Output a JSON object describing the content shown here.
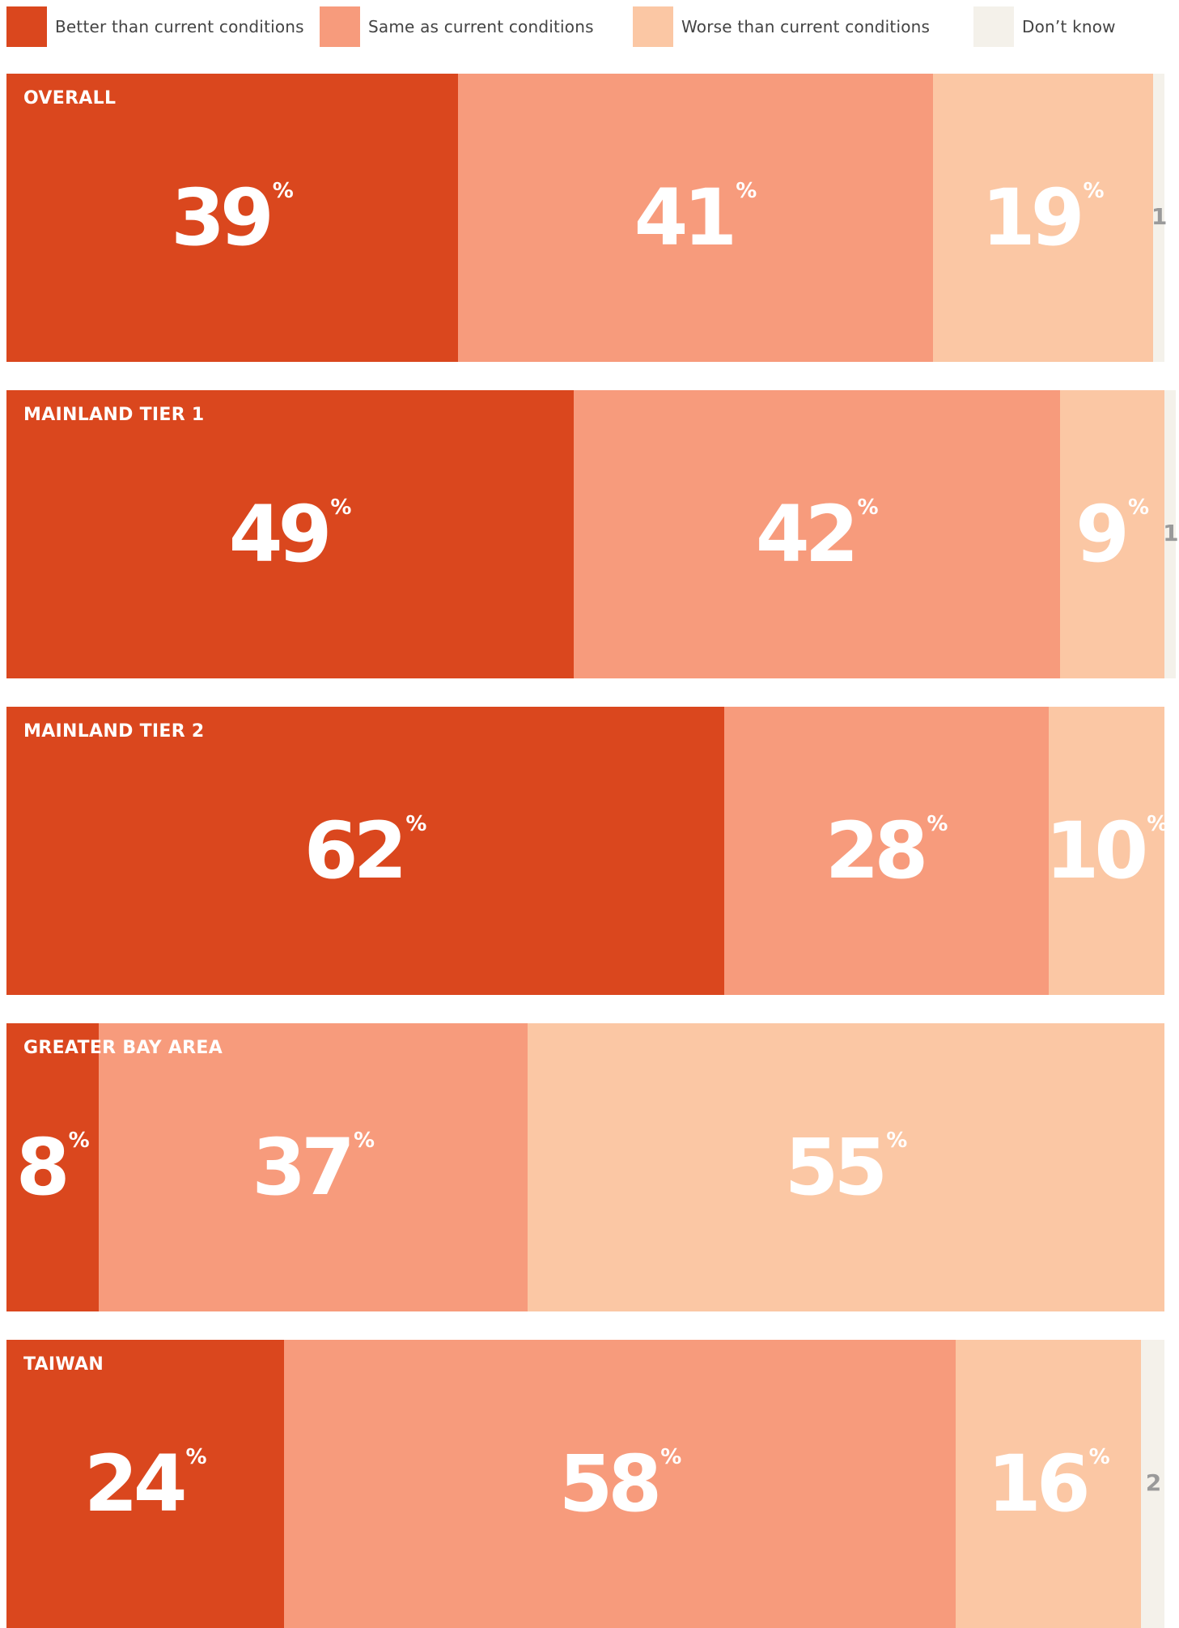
{
  "legend": [
    {
      "label": "Better than current conditions",
      "color": "#da471e"
    },
    {
      "label": "Same as current conditions",
      "color": "#f79b7c"
    },
    {
      "label": "Worse than current conditions",
      "color": "#fbc7a4"
    },
    {
      "label": "Don’t know",
      "color": "#f4f1ea"
    }
  ],
  "chart_data": {
    "type": "bar",
    "orientation": "horizontal-stacked",
    "categories": [
      "OVERALL",
      "MAINLAND TIER 1",
      "MAINLAND TIER 2",
      "GREATER BAY AREA",
      "TAIWAN"
    ],
    "unit": "%",
    "series": [
      {
        "name": "Better than current conditions",
        "color": "#da471e",
        "values": [
          39,
          49,
          62,
          8,
          24
        ]
      },
      {
        "name": "Same as current conditions",
        "color": "#f79b7c",
        "values": [
          41,
          42,
          28,
          37,
          58
        ]
      },
      {
        "name": "Worse than current conditions",
        "color": "#fbc7a4",
        "values": [
          19,
          9,
          10,
          55,
          16
        ]
      },
      {
        "name": "Don’t know",
        "color": "#f4f1ea",
        "values": [
          1,
          1,
          0,
          0,
          2
        ]
      }
    ],
    "legend_position": "top"
  }
}
